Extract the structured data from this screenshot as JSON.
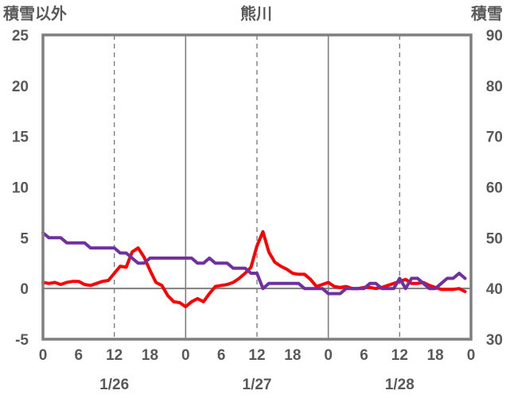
{
  "chart_data": {
    "type": "line",
    "title": "熊川",
    "left_axis_label": "積雪以外",
    "right_axis_label": "積雪",
    "left_ylim": [
      -5,
      25
    ],
    "left_yticks": [
      -5,
      0,
      5,
      10,
      15,
      20,
      25
    ],
    "right_ylim": [
      30,
      90
    ],
    "right_yticks": [
      30,
      40,
      50,
      60,
      70,
      80,
      90
    ],
    "x_hours_range": [
      0,
      72
    ],
    "x_tick_labels": [
      "0",
      "6",
      "12",
      "18",
      "0",
      "6",
      "12",
      "18",
      "0",
      "6",
      "12",
      "18",
      "0"
    ],
    "date_labels": [
      "1/26",
      "1/27",
      "1/28"
    ],
    "grid": "vertical dashed every 6h (12h lines), solid at day boundaries",
    "series": [
      {
        "axis": "left",
        "color": "#ff0000",
        "x": [
          0,
          1,
          2,
          3,
          4,
          5,
          6,
          7,
          8,
          9,
          10,
          11,
          12,
          13,
          14,
          15,
          16,
          17,
          18,
          19,
          20,
          21,
          22,
          23,
          24,
          25,
          26,
          27,
          28,
          29,
          30,
          31,
          32,
          33,
          34,
          35,
          36,
          37,
          38,
          39,
          40,
          41,
          42,
          43,
          44,
          45,
          46,
          47,
          48,
          49,
          50,
          51,
          52,
          53,
          54,
          55,
          56,
          57,
          58,
          59,
          60,
          61,
          62,
          63,
          64,
          65,
          66,
          67,
          68,
          69,
          70,
          71
        ],
        "values": [
          0.6,
          0.5,
          0.6,
          0.4,
          0.6,
          0.7,
          0.7,
          0.4,
          0.3,
          0.5,
          0.7,
          0.8,
          1.5,
          2.2,
          2.1,
          3.6,
          4.0,
          3.1,
          1.8,
          0.6,
          0.3,
          -0.7,
          -1.3,
          -1.4,
          -1.8,
          -1.3,
          -1.0,
          -1.3,
          -0.5,
          0.2,
          0.3,
          0.4,
          0.6,
          1.0,
          1.5,
          2.1,
          4.2,
          5.6,
          3.6,
          2.6,
          2.2,
          1.9,
          1.5,
          1.4,
          1.4,
          0.9,
          0.2,
          0.4,
          0.6,
          0.2,
          0.1,
          0.2,
          0.0,
          0.0,
          0.1,
          0.1,
          0.0,
          0.1,
          0.3,
          0.5,
          0.7,
          0.9,
          0.5,
          0.5,
          0.6,
          0.3,
          0.1,
          -0.1,
          -0.1,
          -0.1,
          0.0,
          -0.3
        ]
      },
      {
        "axis": "right",
        "color": "#7030a0",
        "x": [
          0,
          1,
          2,
          3,
          4,
          5,
          6,
          7,
          8,
          9,
          10,
          11,
          12,
          13,
          14,
          15,
          16,
          17,
          18,
          19,
          20,
          21,
          22,
          23,
          24,
          25,
          26,
          27,
          28,
          29,
          30,
          31,
          32,
          33,
          34,
          35,
          36,
          37,
          38,
          39,
          40,
          41,
          42,
          43,
          44,
          45,
          46,
          47,
          48,
          49,
          50,
          51,
          52,
          53,
          54,
          55,
          56,
          57,
          58,
          59,
          60,
          61,
          62,
          63,
          64,
          65,
          66,
          67,
          68,
          69,
          70,
          71
        ],
        "values": [
          51,
          50,
          50,
          50,
          49,
          49,
          49,
          49,
          48,
          48,
          48,
          48,
          48,
          47,
          47,
          46,
          45,
          45,
          46,
          46,
          46,
          46,
          46,
          46,
          46,
          46,
          45,
          45,
          46,
          45,
          45,
          45,
          44,
          44,
          44,
          43,
          43,
          40,
          41,
          41,
          41,
          41,
          41,
          41,
          40,
          40,
          40,
          40,
          39,
          39,
          39,
          40,
          40,
          40,
          40,
          41,
          41,
          40,
          40,
          40,
          42,
          40,
          42,
          42,
          41,
          40,
          40,
          41,
          42,
          42,
          43,
          42
        ]
      }
    ]
  }
}
